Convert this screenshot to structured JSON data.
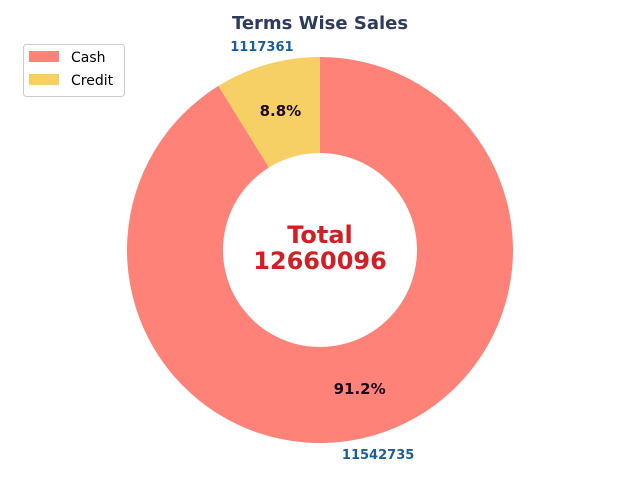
{
  "chart_data": {
    "type": "pie",
    "donut": true,
    "title": "Terms Wise Sales",
    "categories": [
      "Cash",
      "Credit"
    ],
    "values": [
      11542735,
      1117361
    ],
    "percent_labels": [
      "91.2%",
      "8.8%"
    ],
    "value_labels": [
      "11542735",
      "1117361"
    ],
    "center_label": {
      "line1": "Total",
      "line2": "12660096"
    },
    "legend": {
      "position": "upper-left",
      "entries": [
        "Cash",
        "Credit"
      ]
    },
    "colors": {
      "series": [
        "#ff8278",
        "#f6cf65"
      ],
      "title": "#2e3a5e",
      "value_label": "#1a5e9e",
      "percent_label": "#1a0a20",
      "center_label": "#d11f26"
    },
    "start_angle_deg": 90,
    "direction": "clockwise"
  }
}
